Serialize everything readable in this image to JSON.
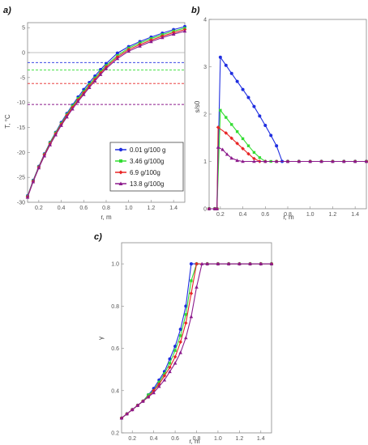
{
  "colors": {
    "blue": "#1f2ee0",
    "green": "#33dd33",
    "red": "#e82626",
    "purple": "#8c1a8c",
    "zero_line": "#aaaaaa",
    "frame": "#888888"
  },
  "panels": {
    "a": {
      "label": "a)"
    },
    "b": {
      "label": "b)"
    },
    "c": {
      "label": "c)"
    }
  },
  "chart_data": [
    {
      "id": "a",
      "type": "line",
      "xlabel": "r, m",
      "ylabel": "T, °C",
      "xlim": [
        0.1,
        1.5
      ],
      "ylim": [
        -30,
        6
      ],
      "xticks": [
        "0.2",
        "0.4",
        "0.6",
        "0.8",
        "1.0",
        "1.2",
        "1.4"
      ],
      "yticks": [
        "5",
        "0",
        "-5",
        "-10",
        "-15",
        "-20",
        "-25",
        "-30"
      ],
      "x": [
        0.1,
        0.15,
        0.2,
        0.25,
        0.3,
        0.35,
        0.4,
        0.45,
        0.5,
        0.55,
        0.6,
        0.65,
        0.7,
        0.75,
        0.8,
        0.9,
        1.0,
        1.1,
        1.2,
        1.3,
        1.4,
        1.5
      ],
      "series": [
        {
          "name": "0.01 g/100 g",
          "color": "blue",
          "marker": "circle",
          "values": [
            -28.7,
            -25.6,
            -22.8,
            -20.3,
            -18.0,
            -16.0,
            -14.0,
            -12.2,
            -10.5,
            -8.9,
            -7.4,
            -6.0,
            -4.7,
            -3.4,
            -2.2,
            -0.1,
            1.2,
            2.2,
            3.1,
            3.9,
            4.6,
            5.2
          ],
          "hline": -2.0
        },
        {
          "name": "3.46 g/100g",
          "color": "green",
          "marker": "square",
          "values": [
            -28.8,
            -25.7,
            -22.9,
            -20.4,
            -18.1,
            -16.1,
            -14.2,
            -12.4,
            -10.7,
            -9.2,
            -7.8,
            -6.4,
            -5.1,
            -3.8,
            -2.6,
            -0.6,
            0.9,
            1.9,
            2.8,
            3.6,
            4.3,
            4.9
          ],
          "hline": -3.5
        },
        {
          "name": "6.9 g/100g",
          "color": "red",
          "marker": "diamond",
          "values": [
            -28.9,
            -25.8,
            -23.0,
            -20.5,
            -18.3,
            -16.3,
            -14.4,
            -12.6,
            -11.0,
            -9.5,
            -8.1,
            -6.7,
            -5.4,
            -4.1,
            -2.9,
            -0.9,
            0.6,
            1.6,
            2.5,
            3.3,
            4.0,
            4.6
          ],
          "hline": -6.2
        },
        {
          "name": "13.8 g/100g",
          "color": "purple",
          "marker": "triangle",
          "values": [
            -29.0,
            -25.9,
            -23.1,
            -20.7,
            -18.5,
            -16.5,
            -14.6,
            -12.9,
            -11.3,
            -9.8,
            -8.4,
            -7.0,
            -5.7,
            -4.4,
            -3.2,
            -1.2,
            0.3,
            1.3,
            2.2,
            3.0,
            3.7,
            4.3
          ],
          "hline": -10.4
        }
      ],
      "zero_line": 0,
      "legend": "bottom-right"
    },
    {
      "id": "b",
      "type": "line",
      "xlabel": "r, m",
      "ylabel": "s/s0",
      "xlim": [
        0.1,
        1.5
      ],
      "ylim": [
        0,
        4
      ],
      "xticks": [
        "0.2",
        "0.4",
        "0.6",
        "0.8",
        "1.0",
        "1.2",
        "1.4"
      ],
      "yticks": [
        "4",
        "3",
        "2",
        "1",
        "0"
      ],
      "series": [
        {
          "name": "0.01 g/100 g",
          "color": "blue",
          "marker": "circle",
          "points": [
            [
              0.1,
              0
            ],
            [
              0.15,
              0
            ],
            [
              0.17,
              0
            ],
            [
              0.2,
              3.2
            ],
            [
              0.25,
              3.03
            ],
            [
              0.3,
              2.86
            ],
            [
              0.35,
              2.69
            ],
            [
              0.4,
              2.52
            ],
            [
              0.45,
              2.35
            ],
            [
              0.5,
              2.16
            ],
            [
              0.55,
              1.96
            ],
            [
              0.6,
              1.76
            ],
            [
              0.65,
              1.55
            ],
            [
              0.7,
              1.33
            ],
            [
              0.75,
              1.0
            ],
            [
              0.8,
              1.0
            ],
            [
              0.9,
              1.0
            ],
            [
              1.0,
              1.0
            ],
            [
              1.1,
              1.0
            ],
            [
              1.2,
              1.0
            ],
            [
              1.3,
              1.0
            ],
            [
              1.4,
              1.0
            ],
            [
              1.5,
              1.0
            ]
          ]
        },
        {
          "name": "3.46 g/100g",
          "color": "green",
          "marker": "square",
          "points": [
            [
              0.1,
              0
            ],
            [
              0.15,
              0
            ],
            [
              0.17,
              0
            ],
            [
              0.2,
              2.08
            ],
            [
              0.25,
              1.93
            ],
            [
              0.3,
              1.78
            ],
            [
              0.35,
              1.63
            ],
            [
              0.4,
              1.48
            ],
            [
              0.45,
              1.33
            ],
            [
              0.5,
              1.19
            ],
            [
              0.55,
              1.08
            ],
            [
              0.6,
              1.0
            ],
            [
              0.65,
              1.0
            ],
            [
              0.7,
              1.0
            ],
            [
              0.8,
              1.0
            ],
            [
              0.9,
              1.0
            ],
            [
              1.0,
              1.0
            ],
            [
              1.1,
              1.0
            ],
            [
              1.2,
              1.0
            ],
            [
              1.3,
              1.0
            ],
            [
              1.4,
              1.0
            ],
            [
              1.5,
              1.0
            ]
          ]
        },
        {
          "name": "6.9 g/100g",
          "color": "red",
          "marker": "diamond",
          "points": [
            [
              0.1,
              0
            ],
            [
              0.15,
              0
            ],
            [
              0.17,
              0
            ],
            [
              0.18,
              1.72
            ],
            [
              0.25,
              1.6
            ],
            [
              0.3,
              1.49
            ],
            [
              0.35,
              1.38
            ],
            [
              0.4,
              1.27
            ],
            [
              0.45,
              1.16
            ],
            [
              0.5,
              1.06
            ],
            [
              0.55,
              1.0
            ],
            [
              0.6,
              1.0
            ],
            [
              0.7,
              1.0
            ],
            [
              0.8,
              1.0
            ],
            [
              0.9,
              1.0
            ],
            [
              1.0,
              1.0
            ],
            [
              1.1,
              1.0
            ],
            [
              1.2,
              1.0
            ],
            [
              1.3,
              1.0
            ],
            [
              1.4,
              1.0
            ],
            [
              1.5,
              1.0
            ]
          ]
        },
        {
          "name": "13.8 g/100g",
          "color": "purple",
          "marker": "triangle",
          "points": [
            [
              0.1,
              0
            ],
            [
              0.15,
              0
            ],
            [
              0.17,
              0
            ],
            [
              0.18,
              1.3
            ],
            [
              0.22,
              1.25
            ],
            [
              0.26,
              1.15
            ],
            [
              0.3,
              1.07
            ],
            [
              0.35,
              1.02
            ],
            [
              0.4,
              1.0
            ],
            [
              0.5,
              1.0
            ],
            [
              0.6,
              1.0
            ],
            [
              0.7,
              1.0
            ],
            [
              0.8,
              1.0
            ],
            [
              0.9,
              1.0
            ],
            [
              1.0,
              1.0
            ],
            [
              1.1,
              1.0
            ],
            [
              1.2,
              1.0
            ],
            [
              1.3,
              1.0
            ],
            [
              1.4,
              1.0
            ],
            [
              1.5,
              1.0
            ]
          ]
        }
      ]
    },
    {
      "id": "c",
      "type": "line",
      "xlabel": "r, m",
      "ylabel": "γ",
      "xlim": [
        0.1,
        1.5
      ],
      "ylim": [
        0.2,
        1.1
      ],
      "xticks": [
        "0.2",
        "0.4",
        "0.6",
        "0.8",
        "1.0",
        "1.2",
        "1.4"
      ],
      "yticks": [
        "1.0",
        "0.8",
        "0.6",
        "0.4",
        "0.2"
      ],
      "series": [
        {
          "name": "0.01 g/100 g",
          "color": "blue",
          "marker": "circle",
          "points": [
            [
              0.1,
              0.27
            ],
            [
              0.15,
              0.29
            ],
            [
              0.2,
              0.31
            ],
            [
              0.25,
              0.33
            ],
            [
              0.3,
              0.35
            ],
            [
              0.35,
              0.38
            ],
            [
              0.4,
              0.41
            ],
            [
              0.45,
              0.45
            ],
            [
              0.5,
              0.49
            ],
            [
              0.55,
              0.55
            ],
            [
              0.6,
              0.61
            ],
            [
              0.65,
              0.69
            ],
            [
              0.7,
              0.8
            ],
            [
              0.75,
              1.0
            ],
            [
              0.8,
              1.0
            ],
            [
              0.9,
              1.0
            ],
            [
              1.0,
              1.0
            ],
            [
              1.1,
              1.0
            ],
            [
              1.2,
              1.0
            ],
            [
              1.3,
              1.0
            ],
            [
              1.4,
              1.0
            ],
            [
              1.5,
              1.0
            ]
          ]
        },
        {
          "name": "3.46 g/100g",
          "color": "green",
          "marker": "square",
          "points": [
            [
              0.1,
              0.27
            ],
            [
              0.15,
              0.29
            ],
            [
              0.2,
              0.31
            ],
            [
              0.25,
              0.33
            ],
            [
              0.3,
              0.35
            ],
            [
              0.35,
              0.38
            ],
            [
              0.4,
              0.4
            ],
            [
              0.45,
              0.44
            ],
            [
              0.5,
              0.48
            ],
            [
              0.55,
              0.53
            ],
            [
              0.6,
              0.59
            ],
            [
              0.65,
              0.66
            ],
            [
              0.7,
              0.76
            ],
            [
              0.75,
              0.92
            ],
            [
              0.8,
              1.0
            ],
            [
              0.9,
              1.0
            ],
            [
              1.0,
              1.0
            ],
            [
              1.1,
              1.0
            ],
            [
              1.2,
              1.0
            ],
            [
              1.3,
              1.0
            ],
            [
              1.4,
              1.0
            ],
            [
              1.5,
              1.0
            ]
          ]
        },
        {
          "name": "6.9 g/100g",
          "color": "red",
          "marker": "diamond",
          "points": [
            [
              0.1,
              0.27
            ],
            [
              0.15,
              0.29
            ],
            [
              0.2,
              0.31
            ],
            [
              0.25,
              0.33
            ],
            [
              0.3,
              0.35
            ],
            [
              0.35,
              0.37
            ],
            [
              0.4,
              0.4
            ],
            [
              0.45,
              0.43
            ],
            [
              0.5,
              0.47
            ],
            [
              0.55,
              0.51
            ],
            [
              0.6,
              0.56
            ],
            [
              0.65,
              0.63
            ],
            [
              0.7,
              0.72
            ],
            [
              0.75,
              0.86
            ],
            [
              0.8,
              1.0
            ],
            [
              0.9,
              1.0
            ],
            [
              1.0,
              1.0
            ],
            [
              1.1,
              1.0
            ],
            [
              1.2,
              1.0
            ],
            [
              1.3,
              1.0
            ],
            [
              1.4,
              1.0
            ],
            [
              1.5,
              1.0
            ]
          ]
        },
        {
          "name": "13.8 g/100g",
          "color": "purple",
          "marker": "triangle",
          "points": [
            [
              0.1,
              0.27
            ],
            [
              0.15,
              0.29
            ],
            [
              0.2,
              0.31
            ],
            [
              0.25,
              0.33
            ],
            [
              0.3,
              0.35
            ],
            [
              0.35,
              0.37
            ],
            [
              0.4,
              0.39
            ],
            [
              0.45,
              0.42
            ],
            [
              0.5,
              0.45
            ],
            [
              0.55,
              0.49
            ],
            [
              0.6,
              0.53
            ],
            [
              0.65,
              0.58
            ],
            [
              0.7,
              0.65
            ],
            [
              0.75,
              0.75
            ],
            [
              0.8,
              0.89
            ],
            [
              0.85,
              1.0
            ],
            [
              0.9,
              1.0
            ],
            [
              1.0,
              1.0
            ],
            [
              1.1,
              1.0
            ],
            [
              1.2,
              1.0
            ],
            [
              1.3,
              1.0
            ],
            [
              1.4,
              1.0
            ],
            [
              1.5,
              1.0
            ]
          ]
        }
      ]
    }
  ]
}
